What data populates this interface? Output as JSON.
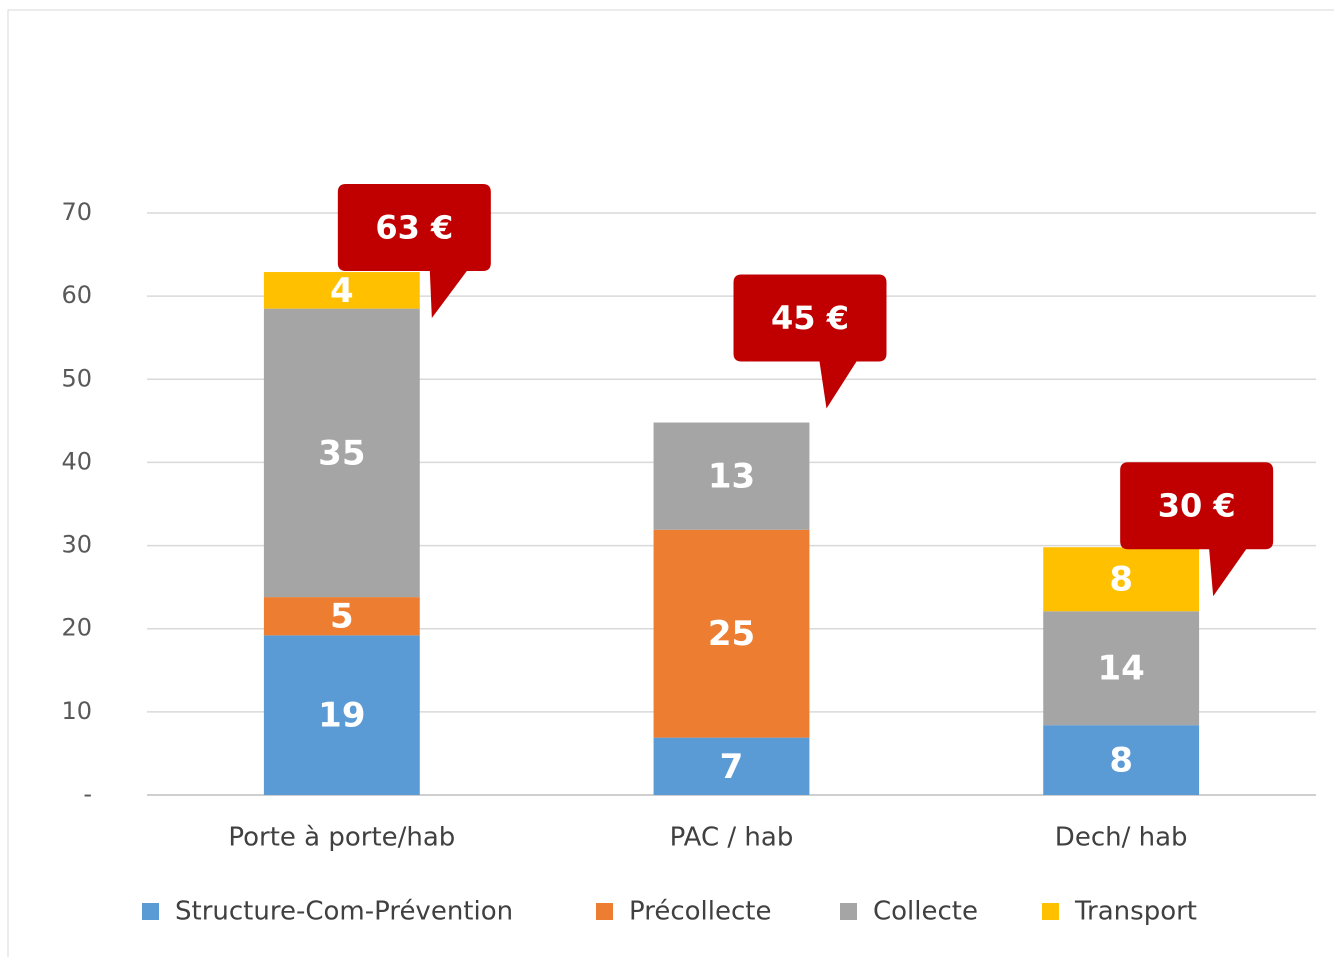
{
  "chart_data": {
    "type": "stacked_bar",
    "categories": [
      "Porte à porte/hab",
      "PAC / hab",
      "Dech/ hab"
    ],
    "series": [
      {
        "name": "Structure-Com-Prévention",
        "color": "#5b9bd5",
        "values": [
          19.2,
          6.9,
          8.4
        ],
        "value_labels": [
          "19",
          "7",
          "8"
        ]
      },
      {
        "name": "Précollecte",
        "color": "#ed7d31",
        "values": [
          4.6,
          25.0,
          null
        ],
        "value_labels": [
          "5",
          "25",
          null
        ]
      },
      {
        "name": "Collecte",
        "color": "#a5a5a5",
        "values": [
          34.7,
          12.9,
          13.7
        ],
        "value_labels": [
          "35",
          "13",
          "14"
        ]
      },
      {
        "name": "Transport",
        "color": "#ffc000",
        "values": [
          4.4,
          null,
          7.7
        ],
        "value_labels": [
          "4",
          null,
          "8"
        ]
      }
    ],
    "annotations": [
      "63 €",
      "45 €",
      "30 €"
    ],
    "annotation_color": "#c00000",
    "ylim": [
      0,
      70
    ],
    "yticks": [
      {
        "value": 0,
        "label": "-"
      },
      10,
      20,
      30,
      40,
      50,
      60,
      70
    ],
    "grid": true,
    "legend": "bottom"
  }
}
